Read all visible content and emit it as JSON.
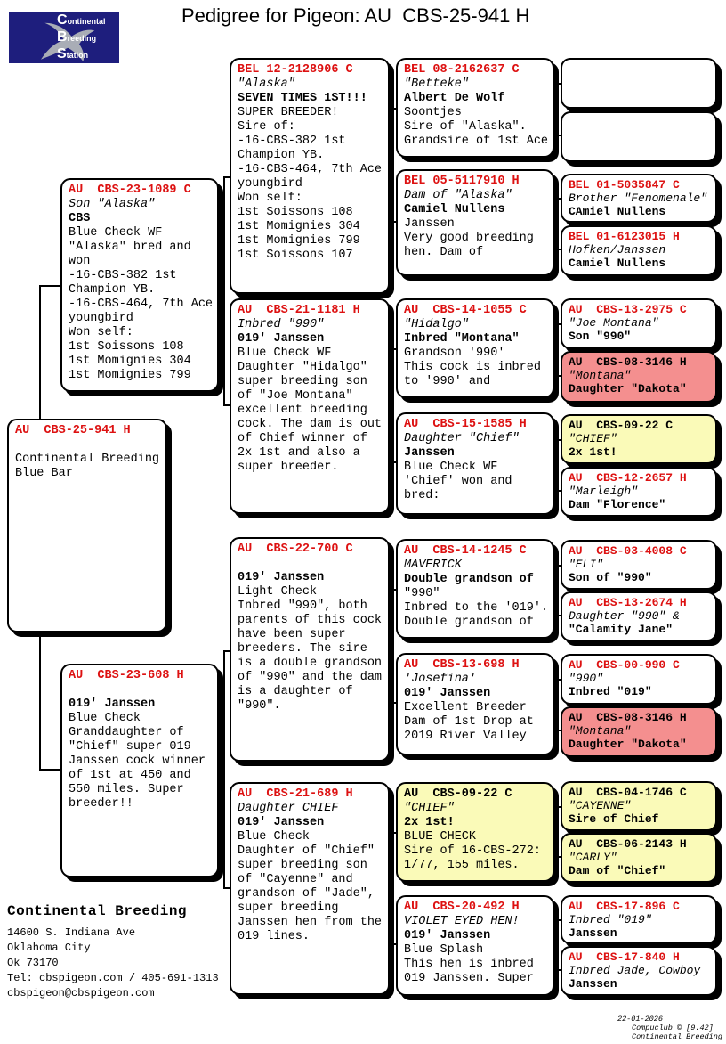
{
  "title": "Pedigree for Pigeon: AU  CBS-25-941 H",
  "logo": {
    "lines": [
      "Continental",
      "Breeding",
      "Station"
    ],
    "bird_icon": "pigeon-silhouette",
    "background": "#1e1e7d"
  },
  "colors": {
    "header_red": "#dd1111",
    "highlight_yellow": "#fafab8",
    "highlight_pink": "#f48f8f",
    "box_border": "#000000"
  },
  "boxes": [
    {
      "ring": "AU  CBS-23-1089 C",
      "highlight": "",
      "lines": [
        {
          "t": "Son \"Alaska\"",
          "s": "i"
        },
        {
          "t": "CBS",
          "s": "b"
        },
        {
          "t": "Blue Check WF"
        },
        {
          "t": "\"Alaska\" bred and"
        },
        {
          "t": "won"
        },
        {
          "t": "-16-CBS-382 1st"
        },
        {
          "t": "Champion YB."
        },
        {
          "t": "-16-CBS-464, 7th Ace"
        },
        {
          "t": "youngbird"
        },
        {
          "t": "Won self:"
        },
        {
          "t": "1st Soissons 108"
        },
        {
          "t": "1st Momignies 304"
        },
        {
          "t": "1st Momignies 799"
        }
      ]
    },
    {
      "ring": "AU  CBS-25-941 H",
      "highlight": "",
      "lines": [
        {
          "t": ""
        },
        {
          "t": "Continental Breeding"
        },
        {
          "t": "Blue Bar"
        }
      ]
    },
    {
      "ring": "AU  CBS-23-608 H",
      "highlight": "",
      "lines": [
        {
          "t": ""
        },
        {
          "t": "019' Janssen",
          "s": "b"
        },
        {
          "t": "Blue Check"
        },
        {
          "t": "Granddaughter of"
        },
        {
          "t": "\"Chief\" super 019"
        },
        {
          "t": "Janssen cock winner"
        },
        {
          "t": "of 1st at 450 and"
        },
        {
          "t": "550 miles. Super"
        },
        {
          "t": "breeder!!"
        }
      ]
    },
    {
      "ring": "BEL 12-2128906 C",
      "highlight": "",
      "lines": [
        {
          "t": "\"Alaska\"",
          "s": "i"
        },
        {
          "t": "SEVEN TIMES 1ST!!!",
          "s": "b"
        },
        {
          "t": "SUPER BREEDER!"
        },
        {
          "t": "Sire of:"
        },
        {
          "t": "-16-CBS-382 1st"
        },
        {
          "t": "Champion YB."
        },
        {
          "t": "-16-CBS-464, 7th Ace"
        },
        {
          "t": "youngbird"
        },
        {
          "t": "Won self:"
        },
        {
          "t": "1st Soissons 108"
        },
        {
          "t": "1st Momignies 304"
        },
        {
          "t": "1st Momignies 799"
        },
        {
          "t": "1st Soissons 107"
        }
      ]
    },
    {
      "ring": "AU  CBS-21-1181 H",
      "highlight": "",
      "lines": [
        {
          "t": "Inbred \"990\"",
          "s": "i"
        },
        {
          "t": "019' Janssen",
          "s": "b"
        },
        {
          "t": "Blue Check WF"
        },
        {
          "t": "Daughter \"Hidalgo\""
        },
        {
          "t": "super breeding son"
        },
        {
          "t": "of \"Joe Montana\""
        },
        {
          "t": "excellent breeding"
        },
        {
          "t": "cock. The dam is out"
        },
        {
          "t": "of Chief winner of"
        },
        {
          "t": "2x 1st and also a"
        },
        {
          "t": "super breeder."
        }
      ]
    },
    {
      "ring": "AU  CBS-22-700 C",
      "highlight": "",
      "lines": [
        {
          "t": ""
        },
        {
          "t": "019' Janssen",
          "s": "b"
        },
        {
          "t": "Light Check"
        },
        {
          "t": "Inbred \"990\", both"
        },
        {
          "t": "parents of this cock"
        },
        {
          "t": "have been super"
        },
        {
          "t": "breeders. The sire"
        },
        {
          "t": "is a double grandson"
        },
        {
          "t": "of \"990\" and the dam"
        },
        {
          "t": "is a daughter of"
        },
        {
          "t": "\"990\"."
        }
      ]
    },
    {
      "ring": "AU  CBS-21-689 H",
      "highlight": "",
      "lines": [
        {
          "t": "Daughter CHIEF",
          "s": "i"
        },
        {
          "t": "019' Janssen",
          "s": "b"
        },
        {
          "t": "Blue Check"
        },
        {
          "t": "Daughter of \"Chief\""
        },
        {
          "t": "super breeding son"
        },
        {
          "t": "of \"Cayenne\" and"
        },
        {
          "t": "grandson of \"Jade\","
        },
        {
          "t": "super breeding"
        },
        {
          "t": "Janssen hen from the"
        },
        {
          "t": "019 lines."
        }
      ]
    },
    {
      "ring": "BEL 08-2162637 C",
      "highlight": "",
      "lines": [
        {
          "t": "\"Betteke\"",
          "s": "i"
        },
        {
          "t": "Albert De Wolf",
          "s": "b"
        },
        {
          "t": "Soontjes"
        },
        {
          "t": "Sire of \"Alaska\"."
        },
        {
          "t": "Grandsire of 1st Ace"
        }
      ]
    },
    {
      "ring": "BEL 05-5117910 H",
      "highlight": "",
      "lines": [
        {
          "t": "Dam of \"Alaska\"",
          "s": "i"
        },
        {
          "t": "Camiel Nullens",
          "s": "b"
        },
        {
          "t": "Janssen"
        },
        {
          "t": "Very good breeding"
        },
        {
          "t": "hen. Dam of"
        }
      ]
    },
    {
      "ring": "AU  CBS-14-1055 C",
      "highlight": "",
      "lines": [
        {
          "t": "\"Hidalgo\"",
          "s": "i"
        },
        {
          "t": "Inbred \"Montana\"",
          "s": "b"
        },
        {
          "t": "Grandson '990'"
        },
        {
          "t": "This cock is inbred"
        },
        {
          "t": "to '990' and"
        }
      ]
    },
    {
      "ring": "AU  CBS-15-1585 H",
      "highlight": "",
      "lines": [
        {
          "t": "Daughter \"Chief\"",
          "s": "i"
        },
        {
          "t": "Janssen",
          "s": "b"
        },
        {
          "t": "Blue Check WF"
        },
        {
          "t": "'Chief' won and"
        },
        {
          "t": "bred:"
        }
      ]
    },
    {
      "ring": "AU  CBS-14-1245 C",
      "highlight": "",
      "lines": [
        {
          "t": "MAVERICK",
          "s": "i"
        },
        {
          "t": "Double grandson of",
          "s": "b"
        },
        {
          "t": "\"990\""
        },
        {
          "t": "Inbred to the '019'."
        },
        {
          "t": "Double grandson of"
        }
      ]
    },
    {
      "ring": "AU  CBS-13-698 H",
      "highlight": "",
      "lines": [
        {
          "t": "'Josefina'",
          "s": "i"
        },
        {
          "t": "019' Janssen",
          "s": "b"
        },
        {
          "t": "Excellent Breeder"
        },
        {
          "t": "Dam of 1st Drop at"
        },
        {
          "t": "2019 River Valley"
        }
      ]
    },
    {
      "ring": "AU  CBS-09-22 C",
      "highlight": "yellow",
      "lines": [
        {
          "t": "\"CHIEF\"",
          "s": "i"
        },
        {
          "t": "2x 1st!",
          "s": "b"
        },
        {
          "t": "BLUE CHECK"
        },
        {
          "t": "Sire of 16-CBS-272:"
        },
        {
          "t": "1/77, 155 miles."
        }
      ]
    },
    {
      "ring": "AU  CBS-20-492 H",
      "highlight": "",
      "lines": [
        {
          "t": "VIOLET EYED HEN!",
          "s": "i"
        },
        {
          "t": "019' Janssen",
          "s": "b"
        },
        {
          "t": "Blue Splash"
        },
        {
          "t": "This hen is inbred"
        },
        {
          "t": "019 Janssen. Super"
        }
      ]
    },
    {
      "ring": "",
      "highlight": "",
      "lines": []
    },
    {
      "ring": "",
      "highlight": "",
      "lines": []
    },
    {
      "ring": "BEL 01-5035847 C",
      "highlight": "",
      "lines": [
        {
          "t": "Brother \"Fenomenale\"",
          "s": "i"
        },
        {
          "t": "CAmiel Nullens",
          "s": "b"
        }
      ]
    },
    {
      "ring": "BEL 01-6123015 H",
      "highlight": "",
      "lines": [
        {
          "t": "Hofken/Janssen",
          "s": "i"
        },
        {
          "t": "Camiel Nullens",
          "s": "b"
        }
      ]
    },
    {
      "ring": "AU  CBS-13-2975 C",
      "highlight": "",
      "lines": [
        {
          "t": "\"Joe Montana\"",
          "s": "i"
        },
        {
          "t": "Son \"990\"",
          "s": "b"
        }
      ]
    },
    {
      "ring": "AU  CBS-08-3146 H",
      "highlight": "pink",
      "lines": [
        {
          "t": "\"Montana\"",
          "s": "i"
        },
        {
          "t": "Daughter \"Dakota\"",
          "s": "b"
        }
      ]
    },
    {
      "ring": "AU  CBS-09-22 C",
      "highlight": "yellow",
      "lines": [
        {
          "t": "\"CHIEF\"",
          "s": "i"
        },
        {
          "t": "2x 1st!",
          "s": "b"
        }
      ]
    },
    {
      "ring": "AU  CBS-12-2657 H",
      "highlight": "",
      "lines": [
        {
          "t": "\"Marleigh\"",
          "s": "i"
        },
        {
          "t": "Dam \"Florence\"",
          "s": "b"
        }
      ]
    },
    {
      "ring": "AU  CBS-03-4008 C",
      "highlight": "",
      "lines": [
        {
          "t": "\"ELI\"",
          "s": "i"
        },
        {
          "t": "Son of \"990\"",
          "s": "b"
        }
      ]
    },
    {
      "ring": "AU  CBS-13-2674 H",
      "highlight": "",
      "lines": [
        {
          "t": "Daughter \"990\" &",
          "s": "i"
        },
        {
          "t": "\"Calamity Jane\"",
          "s": "b"
        }
      ]
    },
    {
      "ring": "AU  CBS-00-990 C",
      "highlight": "",
      "lines": [
        {
          "t": "\"990\"",
          "s": "i"
        },
        {
          "t": "Inbred \"019\"",
          "s": "b"
        }
      ]
    },
    {
      "ring": "AU  CBS-08-3146 H",
      "highlight": "pink",
      "lines": [
        {
          "t": "\"Montana\"",
          "s": "i"
        },
        {
          "t": "Daughter \"Dakota\"",
          "s": "b"
        }
      ]
    },
    {
      "ring": "AU  CBS-04-1746 C",
      "highlight": "yellow",
      "lines": [
        {
          "t": "\"CAYENNE\"",
          "s": "i"
        },
        {
          "t": "Sire of Chief",
          "s": "b"
        }
      ]
    },
    {
      "ring": "AU  CBS-06-2143 H",
      "highlight": "yellow",
      "lines": [
        {
          "t": "\"CARLY\"",
          "s": "i"
        },
        {
          "t": "Dam of \"Chief\"",
          "s": "b"
        }
      ]
    },
    {
      "ring": "AU  CBS-17-896 C",
      "highlight": "",
      "lines": [
        {
          "t": "Inbred \"019\"",
          "s": "i"
        },
        {
          "t": "Janssen",
          "s": "b"
        }
      ]
    },
    {
      "ring": "AU  CBS-17-840 H",
      "highlight": "",
      "lines": [
        {
          "t": "Inbred Jade, Cowboy",
          "s": "i"
        },
        {
          "t": "Janssen",
          "s": "b"
        }
      ]
    }
  ],
  "contact": {
    "name": "Continental Breeding",
    "address1": "14600 S. Indiana Ave",
    "address2": "Oklahoma City",
    "address3": "Ok 73170",
    "tel": "Tel: cbspigeon.com / 405-691-1313",
    "email": "cbspigeon@cbspigeon.com"
  },
  "footer": {
    "date": "22-01-2026",
    "software": "Compuclub © [9.42]",
    "loft": "Continental Breeding"
  }
}
